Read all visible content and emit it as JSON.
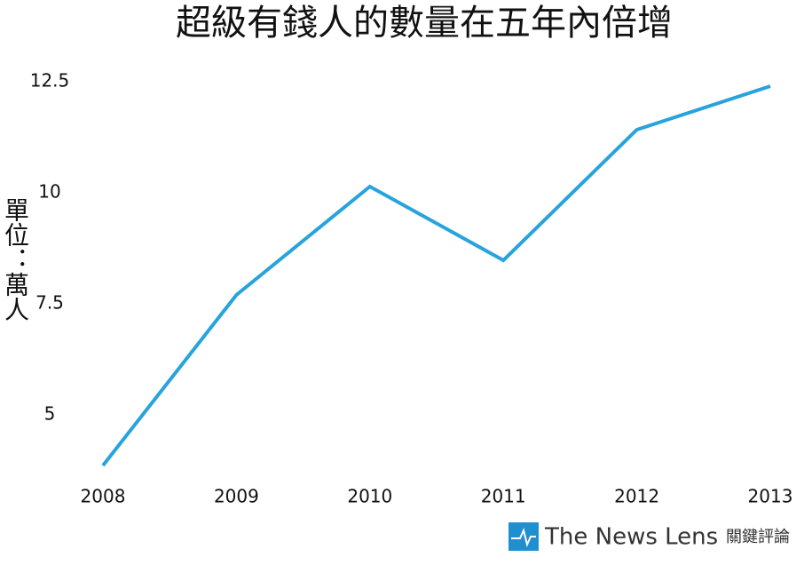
{
  "chart_data": {
    "type": "line",
    "title": "超級有錢人的數量在五年內倍增",
    "y_label": "單位：萬人",
    "categories": [
      "2008",
      "2009",
      "2010",
      "2011",
      "2012",
      "2013"
    ],
    "values": [
      3.86,
      7.7,
      10.14,
      8.48,
      11.42,
      12.4
    ],
    "color": "#29a3dd",
    "ylim": [
      3.8,
      12.6
    ],
    "yticks": [
      5,
      7.5,
      10,
      12.5
    ],
    "grid": false
  },
  "logo": {
    "text": "The News Lens",
    "chinese": "關鍵評論"
  }
}
